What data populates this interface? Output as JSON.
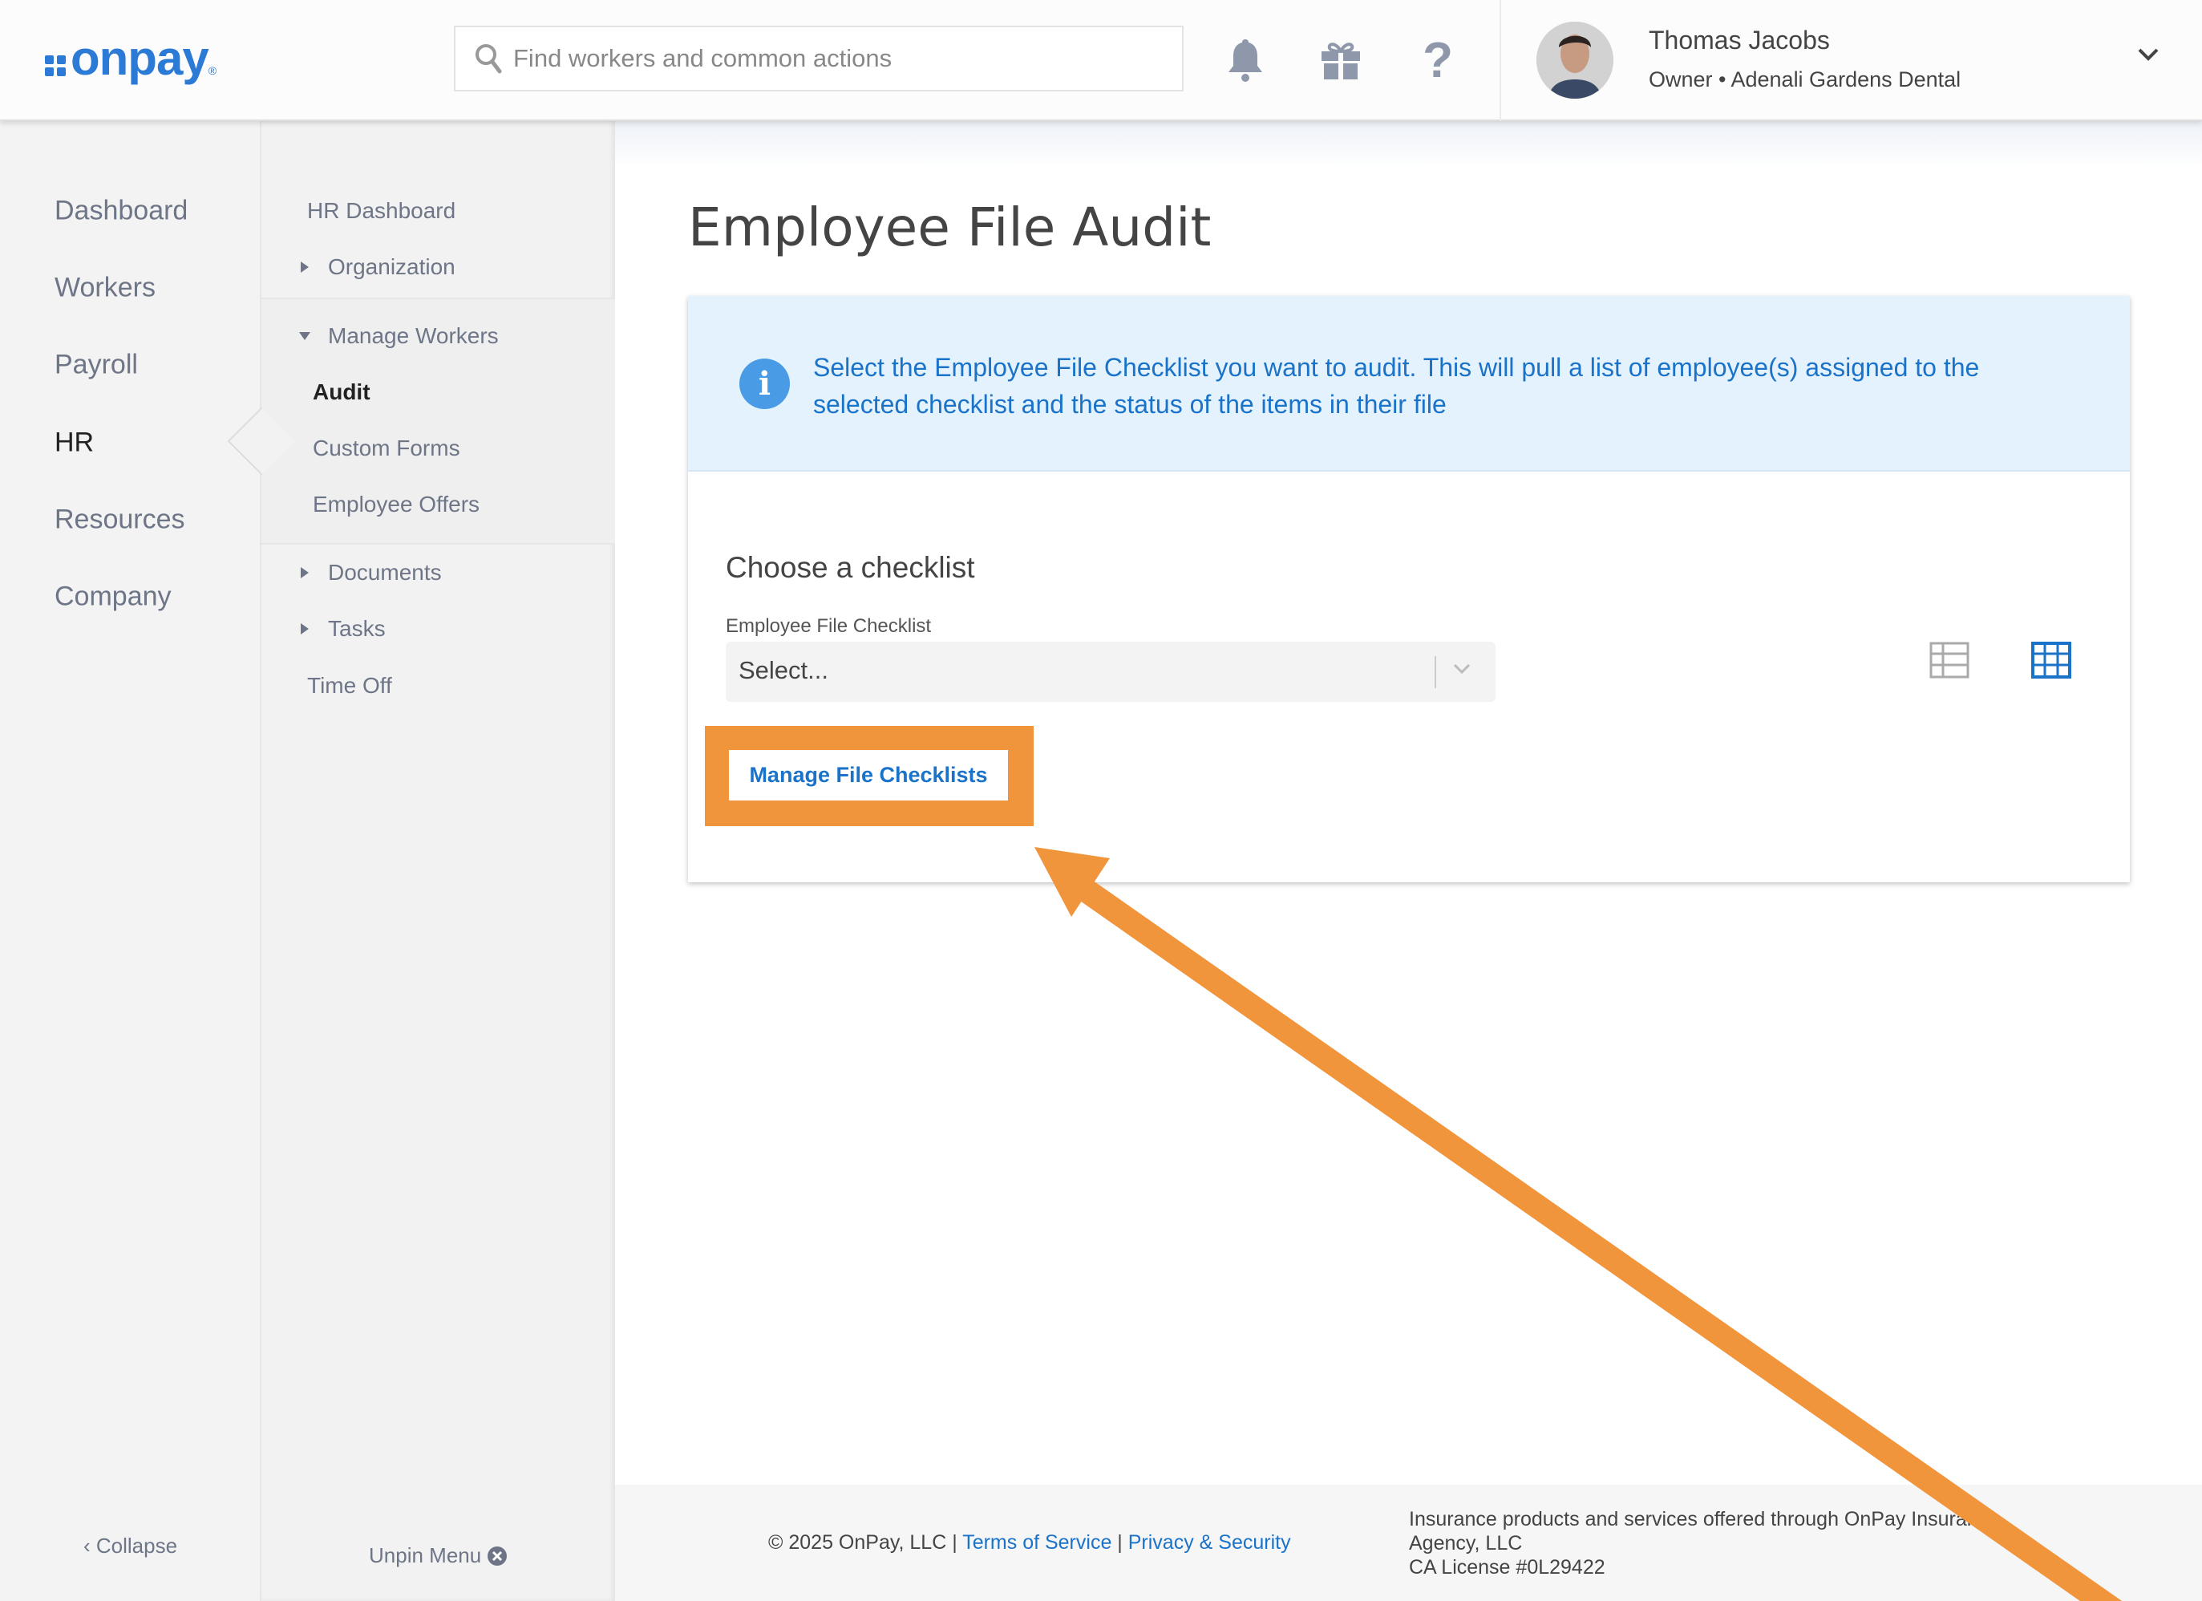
{
  "header": {
    "logo_text": "onpay",
    "search_placeholder": "Find workers and common actions",
    "icons": [
      "bell-icon",
      "gift-icon",
      "help-icon"
    ],
    "user": {
      "name": "Thomas Jacobs",
      "role": "Owner • Adenali Gardens Dental"
    }
  },
  "primary_nav": {
    "items": [
      {
        "label": "Dashboard"
      },
      {
        "label": "Workers"
      },
      {
        "label": "Payroll"
      },
      {
        "label": "HR",
        "active": true
      },
      {
        "label": "Resources"
      },
      {
        "label": "Company"
      }
    ],
    "collapse_label": "Collapse"
  },
  "secondary_nav": {
    "hr_dashboard": "HR Dashboard",
    "organization": "Organization",
    "manage_workers": "Manage Workers",
    "audit": "Audit",
    "custom_forms": "Custom Forms",
    "employee_offers": "Employee Offers",
    "documents": "Documents",
    "tasks": "Tasks",
    "time_off": "Time Off",
    "unpin_label": "Unpin Menu"
  },
  "main": {
    "title": "Employee File Audit",
    "info_text": "Select the Employee File Checklist you want to audit. This will pull a list of employee(s) assigned to the selected checklist and the status of the items in their file",
    "section_title": "Choose a checklist",
    "select_label": "Employee File Checklist",
    "select_value": "Select...",
    "view_icons": [
      "list-view-icon",
      "grid-view-icon"
    ],
    "manage_button": "Manage File Checklists"
  },
  "footer": {
    "copyright": "© 2025 OnPay, LLC | ",
    "terms": "Terms of Service",
    "sep": " | ",
    "privacy": "Privacy & Security",
    "insurance_line1": "Insurance products and services offered through OnPay Insurance",
    "insurance_line2": "Agency, LLC",
    "insurance_line3": "CA License #0L29422"
  },
  "colors": {
    "brand": "#2b7bd6",
    "link": "#1a73c9",
    "highlight": "#f0953b",
    "info_bg": "#e3f2fd"
  }
}
